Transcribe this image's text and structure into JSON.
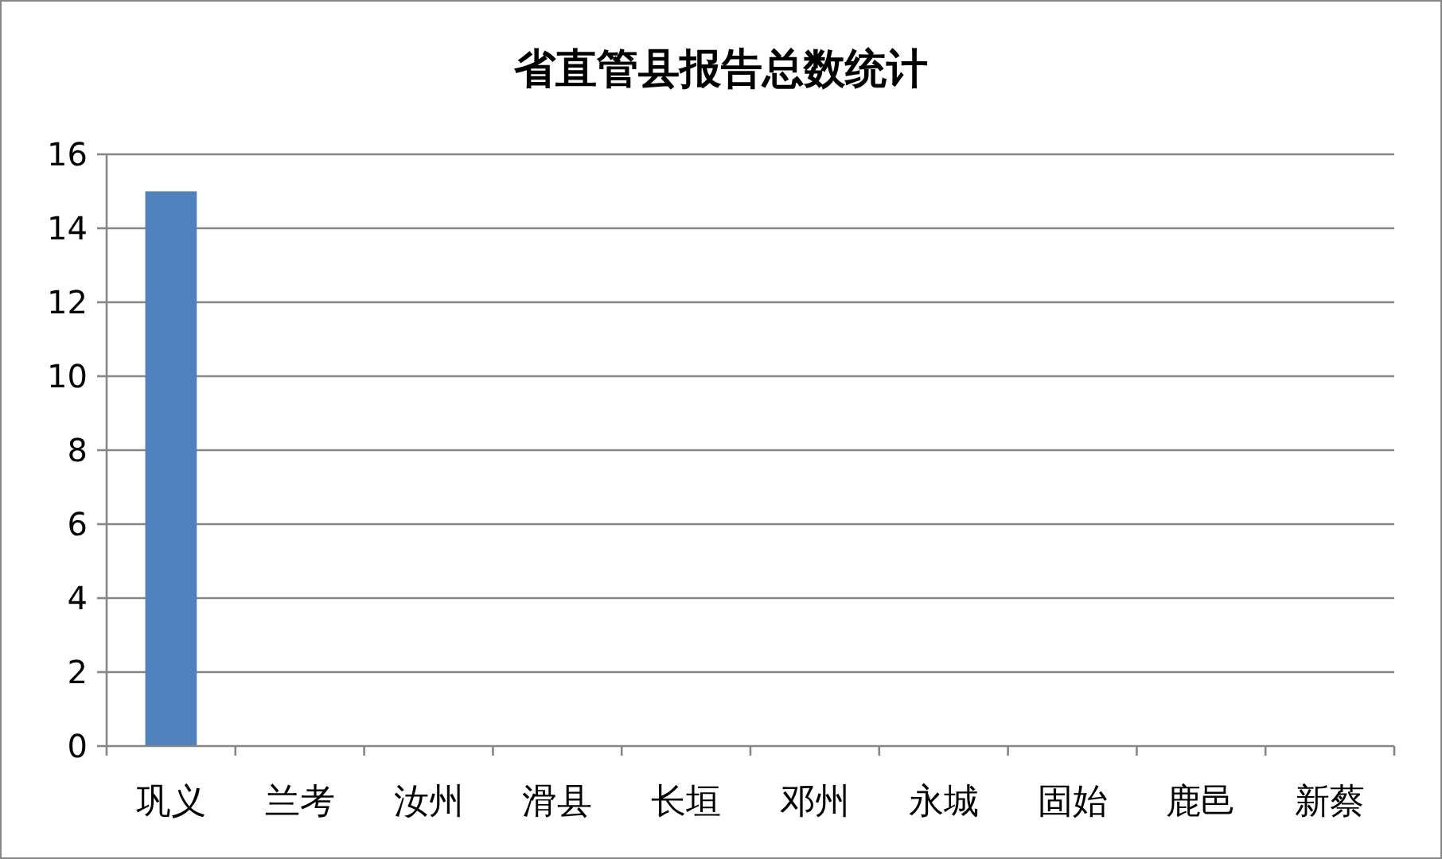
{
  "chart_data": {
    "type": "bar",
    "title": "省直管县报告总数统计",
    "categories": [
      "巩义",
      "兰考",
      "汝州",
      "滑县",
      "长垣",
      "邓州",
      "永城",
      "固始",
      "鹿邑",
      "新蔡"
    ],
    "values": [
      15,
      0,
      0,
      0,
      0,
      0,
      0,
      0,
      0,
      0
    ],
    "color": "#4f81bd",
    "ylim": [
      0,
      16
    ],
    "yticks": [
      0,
      2,
      4,
      6,
      8,
      10,
      12,
      14,
      16
    ],
    "grid": "y",
    "legend": false
  }
}
